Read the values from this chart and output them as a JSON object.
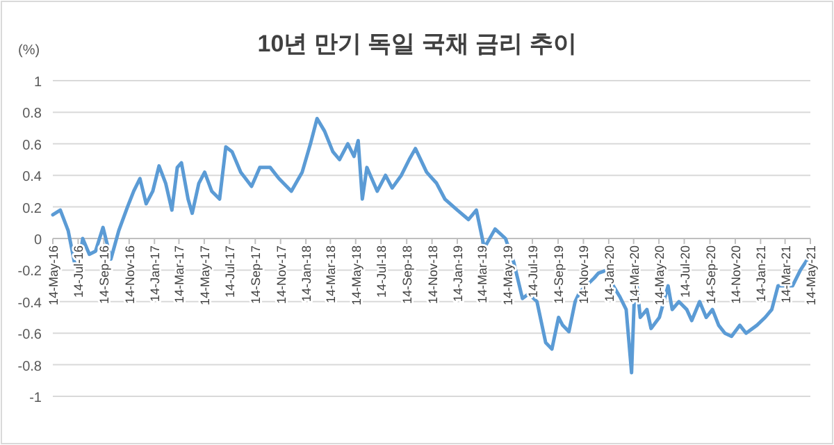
{
  "chart_data": {
    "type": "line",
    "title": "10년 만기 독일 국채 금리 추이",
    "ylabel": "(%)",
    "xlim": [
      "2016-05-14",
      "2021-05-14"
    ],
    "ylim": [
      -1,
      1
    ],
    "yticks": [
      -1,
      -0.8,
      -0.6,
      -0.4,
      -0.2,
      0,
      0.2,
      0.4,
      0.6,
      0.8,
      1
    ],
    "xticks": [
      {
        "value": "2016-05-14",
        "label": "14-May-16"
      },
      {
        "value": "2016-07-14",
        "label": "14-Jul-16"
      },
      {
        "value": "2016-09-14",
        "label": "14-Sep-16"
      },
      {
        "value": "2016-11-14",
        "label": "14-Nov-16"
      },
      {
        "value": "2017-01-14",
        "label": "14-Jan-17"
      },
      {
        "value": "2017-03-14",
        "label": "14-Mar-17"
      },
      {
        "value": "2017-05-14",
        "label": "14-May-17"
      },
      {
        "value": "2017-07-14",
        "label": "14-Jul-17"
      },
      {
        "value": "2017-09-14",
        "label": "14-Sep-17"
      },
      {
        "value": "2017-11-14",
        "label": "14-Nov-17"
      },
      {
        "value": "2018-01-14",
        "label": "14-Jan-18"
      },
      {
        "value": "2018-03-14",
        "label": "14-Mar-18"
      },
      {
        "value": "2018-05-14",
        "label": "14-May-18"
      },
      {
        "value": "2018-07-14",
        "label": "14-Jul-18"
      },
      {
        "value": "2018-09-14",
        "label": "14-Sep-18"
      },
      {
        "value": "2018-11-14",
        "label": "14-Nov-18"
      },
      {
        "value": "2019-01-14",
        "label": "14-Jan-19"
      },
      {
        "value": "2019-03-14",
        "label": "14-Mar-19"
      },
      {
        "value": "2019-05-14",
        "label": "14-May-19"
      },
      {
        "value": "2019-07-14",
        "label": "14-Jul-19"
      },
      {
        "value": "2019-09-14",
        "label": "14-Sep-19"
      },
      {
        "value": "2019-11-14",
        "label": "14-Nov-19"
      },
      {
        "value": "2020-01-14",
        "label": "14-Jan-20"
      },
      {
        "value": "2020-03-14",
        "label": "14-Mar-20"
      },
      {
        "value": "2020-05-14",
        "label": "14-May-20"
      },
      {
        "value": "2020-07-14",
        "label": "14-Jul-20"
      },
      {
        "value": "2020-09-14",
        "label": "14-Sep-20"
      },
      {
        "value": "2020-11-14",
        "label": "14-Nov-20"
      },
      {
        "value": "2021-01-14",
        "label": "14-Jan-21"
      },
      {
        "value": "2021-03-14",
        "label": "14-Mar-21"
      },
      {
        "value": "2021-05-14",
        "label": "14-May-21"
      }
    ],
    "grid": "y",
    "marker": "none",
    "line_style": "solid",
    "series": [
      {
        "color": "#5b9bd5",
        "x": [
          "2016-05-14",
          "2016-06-01",
          "2016-06-20",
          "2016-07-05",
          "2016-07-15",
          "2016-07-25",
          "2016-08-10",
          "2016-08-25",
          "2016-09-12",
          "2016-10-01",
          "2016-10-20",
          "2016-11-10",
          "2016-11-25",
          "2016-12-10",
          "2016-12-25",
          "2017-01-10",
          "2017-01-25",
          "2017-02-10",
          "2017-02-25",
          "2017-03-10",
          "2017-03-20",
          "2017-04-05",
          "2017-04-15",
          "2017-05-01",
          "2017-05-15",
          "2017-06-01",
          "2017-06-20",
          "2017-07-05",
          "2017-07-20",
          "2017-08-10",
          "2017-09-05",
          "2017-09-25",
          "2017-10-20",
          "2017-11-10",
          "2017-12-10",
          "2018-01-05",
          "2018-01-25",
          "2018-02-10",
          "2018-02-28",
          "2018-03-20",
          "2018-04-05",
          "2018-04-25",
          "2018-05-10",
          "2018-05-20",
          "2018-05-30",
          "2018-06-10",
          "2018-07-05",
          "2018-07-25",
          "2018-08-10",
          "2018-09-01",
          "2018-09-20",
          "2018-10-05",
          "2018-11-01",
          "2018-11-25",
          "2018-12-15",
          "2019-01-14",
          "2019-02-10",
          "2019-03-01",
          "2019-03-20",
          "2019-04-15",
          "2019-05-10",
          "2019-05-30",
          "2019-06-20",
          "2019-07-05",
          "2019-07-25",
          "2019-08-15",
          "2019-08-30",
          "2019-09-15",
          "2019-09-25",
          "2019-10-10",
          "2019-10-25",
          "2019-11-05",
          "2019-11-20",
          "2019-12-10",
          "2019-12-20",
          "2020-01-10",
          "2020-01-25",
          "2020-02-10",
          "2020-02-25",
          "2020-03-09",
          "2020-03-18",
          "2020-03-30",
          "2020-04-15",
          "2020-04-25",
          "2020-05-15",
          "2020-06-05",
          "2020-06-15",
          "2020-07-01",
          "2020-07-20",
          "2020-08-01",
          "2020-08-20",
          "2020-09-05",
          "2020-09-20",
          "2020-10-05",
          "2020-10-20",
          "2020-11-05",
          "2020-11-25",
          "2020-12-10",
          "2021-01-05",
          "2021-01-25",
          "2021-02-10",
          "2021-02-25",
          "2021-03-15",
          "2021-04-01",
          "2021-04-20",
          "2021-05-10"
        ],
        "values": [
          0.15,
          0.18,
          0.05,
          -0.15,
          -0.18,
          0.0,
          -0.1,
          -0.08,
          0.07,
          -0.13,
          0.05,
          0.2,
          0.3,
          0.38,
          0.22,
          0.3,
          0.46,
          0.35,
          0.18,
          0.45,
          0.48,
          0.25,
          0.16,
          0.35,
          0.42,
          0.3,
          0.25,
          0.58,
          0.55,
          0.42,
          0.33,
          0.45,
          0.45,
          0.38,
          0.3,
          0.42,
          0.6,
          0.76,
          0.68,
          0.55,
          0.5,
          0.6,
          0.52,
          0.62,
          0.25,
          0.45,
          0.3,
          0.4,
          0.32,
          0.4,
          0.5,
          0.57,
          0.42,
          0.35,
          0.25,
          0.18,
          0.12,
          0.18,
          -0.06,
          0.06,
          0.0,
          -0.15,
          -0.38,
          -0.35,
          -0.4,
          -0.66,
          -0.7,
          -0.5,
          -0.55,
          -0.59,
          -0.4,
          -0.34,
          -0.3,
          -0.25,
          -0.22,
          -0.2,
          -0.3,
          -0.37,
          -0.45,
          -0.85,
          -0.2,
          -0.5,
          -0.45,
          -0.57,
          -0.5,
          -0.3,
          -0.45,
          -0.4,
          -0.45,
          -0.52,
          -0.4,
          -0.5,
          -0.45,
          -0.55,
          -0.6,
          -0.62,
          -0.55,
          -0.6,
          -0.55,
          -0.5,
          -0.45,
          -0.3,
          -0.3,
          -0.3,
          -0.2,
          -0.12
        ]
      }
    ]
  }
}
